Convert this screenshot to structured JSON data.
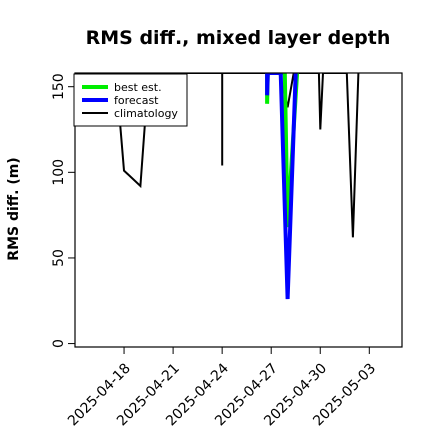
{
  "chart_data": {
    "type": "line",
    "title": "RMS diff., mixed layer depth",
    "ylabel": "RMS diff. (m)",
    "xlabel": "",
    "ylim": [
      -2,
      158
    ],
    "xlim": [
      "2025-04-15",
      "2025-05-05"
    ],
    "yticks": [
      0,
      50,
      100,
      150
    ],
    "xticks": [
      "2025-04-18",
      "2025-04-21",
      "2025-04-24",
      "2025-04-27",
      "2025-04-30",
      "2025-05-03"
    ],
    "highlight_tick": "2025-04-24",
    "highlight_color": "#228b22",
    "grid": false,
    "legend": {
      "placement": "top-left",
      "entries": [
        "best est.",
        "forecast",
        "climatology"
      ]
    },
    "series": [
      {
        "name": "best est.",
        "color": "#00ee00",
        "points": [
          [
            "2025-04-26 18:00",
            158
          ],
          [
            "2025-04-26 18:00",
            140
          ],
          [
            "2025-04-26 19:00",
            158
          ],
          [
            "2025-04-27 20:00",
            158
          ],
          [
            "2025-04-28 00:00",
            68
          ],
          [
            "2025-04-28 14:00",
            158
          ]
        ]
      },
      {
        "name": "forecast",
        "color": "#0000ff",
        "points": [
          [
            "2025-04-26 18:00",
            158
          ],
          [
            "2025-04-26 18:00",
            145
          ],
          [
            "2025-04-26 19:00",
            158
          ],
          [
            "2025-04-27 14:00",
            158
          ],
          [
            "2025-04-28 00:00",
            26
          ],
          [
            "2025-04-28 12:00",
            158
          ]
        ]
      },
      {
        "name": "climatology",
        "color": "#000000",
        "points": [
          [
            "2025-04-17 12:00",
            158
          ],
          [
            "2025-04-18 00:00",
            101
          ],
          [
            "2025-04-19 00:00",
            92
          ],
          [
            "2025-04-19 12:00",
            158
          ],
          [
            "2025-04-24 00:00",
            158
          ],
          [
            "2025-04-24 00:00",
            104
          ],
          [
            "2025-04-24 00:00",
            158
          ],
          [
            "2025-04-26 18:00",
            158
          ],
          [
            "2025-04-26 18:00",
            143
          ],
          [
            "2025-04-26 19:00",
            158
          ],
          [
            "2025-04-27 12:00",
            158
          ],
          [
            "2025-04-28 00:00",
            138
          ],
          [
            "2025-04-28 09:00",
            158
          ],
          [
            "2025-04-29 22:00",
            158
          ],
          [
            "2025-04-30 00:00",
            125
          ],
          [
            "2025-04-30 04:00",
            158
          ],
          [
            "2025-05-01 15:00",
            158
          ],
          [
            "2025-05-02 00:00",
            62
          ],
          [
            "2025-05-02 08:00",
            158
          ]
        ]
      }
    ]
  }
}
